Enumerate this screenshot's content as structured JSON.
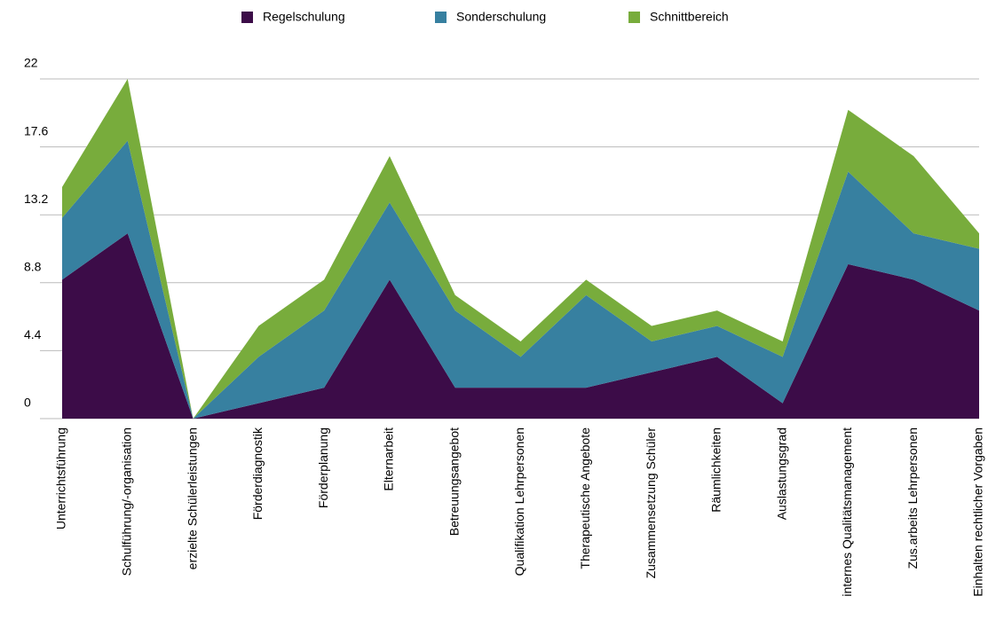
{
  "chart_data": {
    "type": "stacked_area",
    "categories": [
      "Unterrichtsführung",
      "Schulführung/-organisation",
      "erzielte Schülerleistungen",
      "Förderdiagnostik",
      "Förderplanung",
      "Elternarbeit",
      "Betreuungsangebot",
      "Qualifikation Lehrpersonen",
      "Therapeutische Angebote",
      "Zusammensetzung Schüler",
      "Räumlichkeiten",
      "Auslastungsgrad",
      "internes Qualitätsmanagement",
      "Zus.arbeits Lehrpersonen",
      "Einhalten rechtlicher Vorgaben"
    ],
    "series": [
      {
        "name": "Regelschulung",
        "color": "#3c0c48",
        "values": [
          9,
          12,
          0,
          1,
          2,
          9,
          2,
          2,
          2,
          3,
          4,
          1,
          10,
          9,
          7
        ]
      },
      {
        "name": "Sonderschulung",
        "color": "#3780a0",
        "values": [
          4,
          6,
          0,
          3,
          5,
          5,
          5,
          2,
          6,
          2,
          2,
          3,
          6,
          3,
          4
        ]
      },
      {
        "name": "Schnittbereich",
        "color": "#78ac3c",
        "values": [
          2,
          4,
          0,
          2,
          2,
          3,
          1,
          1,
          1,
          1,
          1,
          1,
          4,
          5,
          1
        ]
      }
    ],
    "ylim": [
      0,
      22
    ],
    "yticks": [
      0,
      4.4,
      8.8,
      13.2,
      17.6,
      22
    ],
    "grid": true,
    "legend": "top"
  }
}
